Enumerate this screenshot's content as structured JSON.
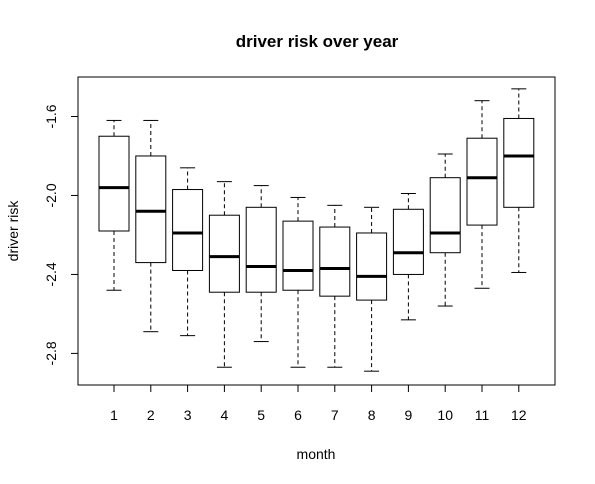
{
  "chart_data": {
    "type": "boxplot",
    "title": "driver risk over year",
    "xlabel": "month",
    "ylabel": "driver risk",
    "categories": [
      "1",
      "2",
      "3",
      "4",
      "5",
      "6",
      "7",
      "8",
      "9",
      "10",
      "11",
      "12"
    ],
    "ylim": [
      -2.96,
      -1.4
    ],
    "yticks": [
      -2.8,
      -2.4,
      -2.0,
      -1.6
    ],
    "ytick_labels": [
      "-2.8",
      "-2.4",
      "-2.0",
      "-1.6"
    ],
    "grid": false,
    "boxes": [
      {
        "whisker_low": -2.48,
        "q1": -2.18,
        "median": -1.96,
        "q3": -1.7,
        "whisker_high": -1.62
      },
      {
        "whisker_low": -2.69,
        "q1": -2.34,
        "median": -2.08,
        "q3": -1.8,
        "whisker_high": -1.62
      },
      {
        "whisker_low": -2.71,
        "q1": -2.38,
        "median": -2.19,
        "q3": -1.97,
        "whisker_high": -1.86
      },
      {
        "whisker_low": -2.87,
        "q1": -2.49,
        "median": -2.31,
        "q3": -2.1,
        "whisker_high": -1.93
      },
      {
        "whisker_low": -2.74,
        "q1": -2.49,
        "median": -2.36,
        "q3": -2.06,
        "whisker_high": -1.95
      },
      {
        "whisker_low": -2.87,
        "q1": -2.48,
        "median": -2.38,
        "q3": -2.13,
        "whisker_high": -2.01
      },
      {
        "whisker_low": -2.87,
        "q1": -2.51,
        "median": -2.37,
        "q3": -2.16,
        "whisker_high": -2.05
      },
      {
        "whisker_low": -2.89,
        "q1": -2.53,
        "median": -2.41,
        "q3": -2.19,
        "whisker_high": -2.06
      },
      {
        "whisker_low": -2.63,
        "q1": -2.4,
        "median": -2.29,
        "q3": -2.07,
        "whisker_high": -1.99
      },
      {
        "whisker_low": -2.56,
        "q1": -2.29,
        "median": -2.19,
        "q3": -1.91,
        "whisker_high": -1.79
      },
      {
        "whisker_low": -2.47,
        "q1": -2.15,
        "median": -1.91,
        "q3": -1.71,
        "whisker_high": -1.52
      },
      {
        "whisker_low": -2.39,
        "q1": -2.06,
        "median": -1.8,
        "q3": -1.61,
        "whisker_high": -1.46
      }
    ]
  }
}
